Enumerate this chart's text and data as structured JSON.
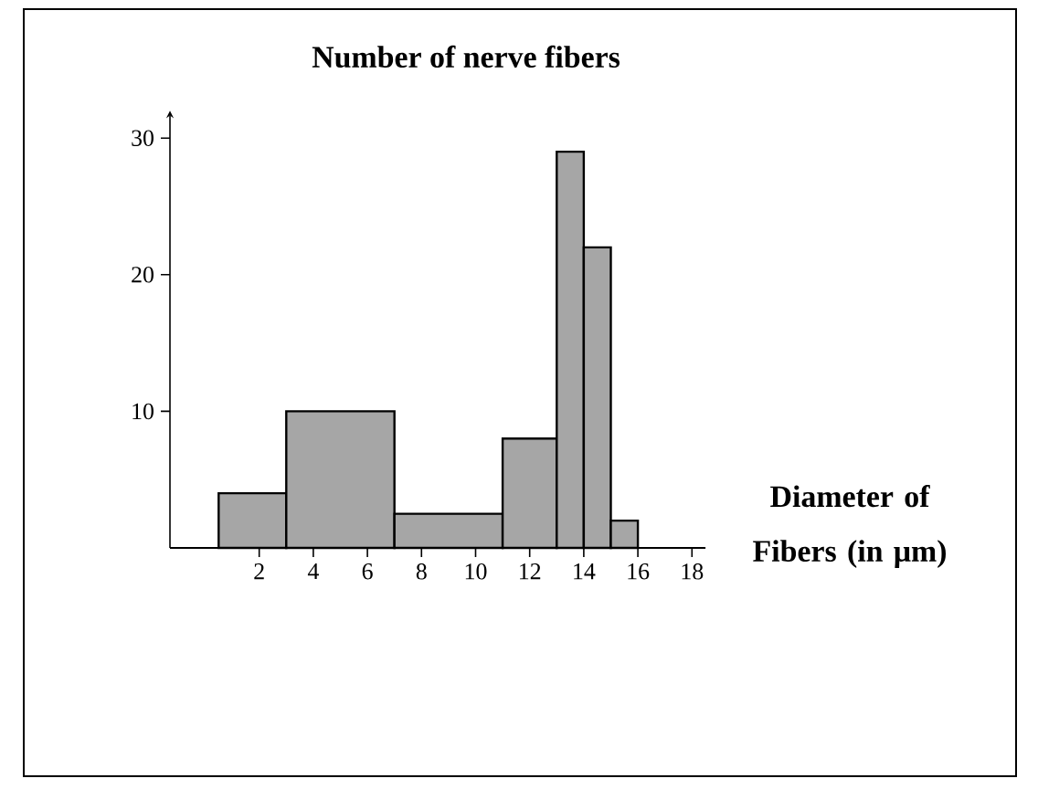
{
  "chart_data": {
    "type": "histogram",
    "title": "Number of nerve fibers",
    "xlabel": "Diameter of Fibers (in μm)",
    "bins": [
      0.5,
      3,
      7,
      11,
      13,
      14,
      15,
      16
    ],
    "values": [
      4,
      10,
      2.5,
      8,
      29,
      22,
      2
    ],
    "color": "#a6a6a6",
    "xlim": [
      -1.3,
      18.5
    ],
    "ylim": [
      0,
      32
    ],
    "xticks": [
      2,
      4,
      6,
      8,
      10,
      12,
      14,
      16,
      18
    ],
    "yticks": [
      10,
      20,
      30
    ]
  }
}
